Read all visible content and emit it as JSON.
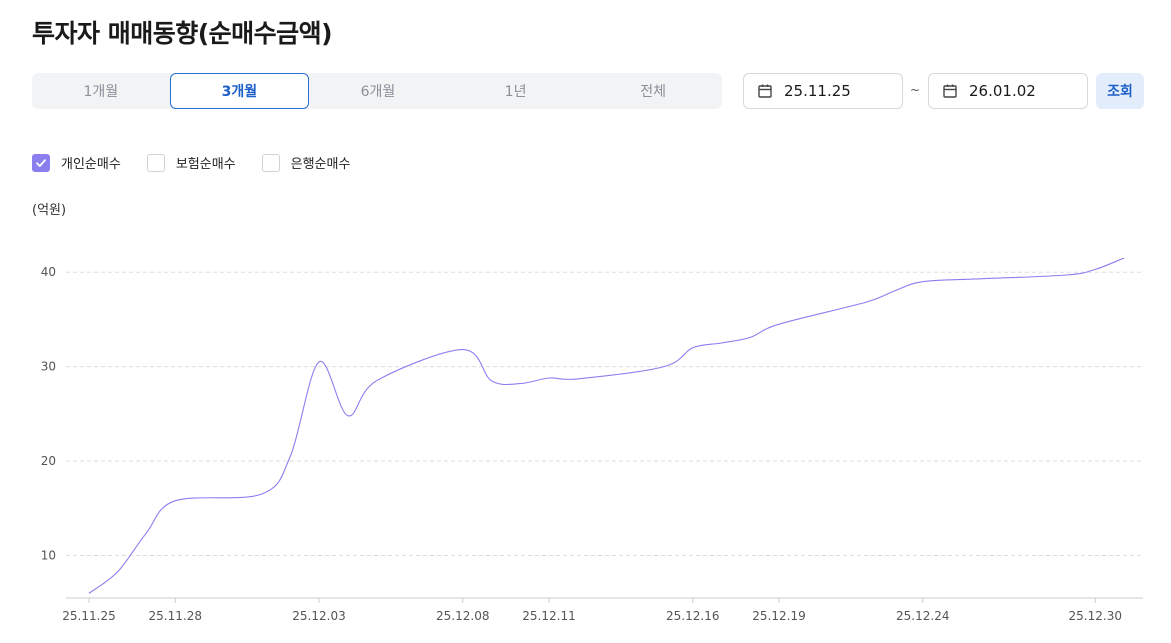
{
  "page": {
    "title": "투자자 매매동향(순매수금액)"
  },
  "period_tabs": [
    {
      "label": "1개월",
      "active": false
    },
    {
      "label": "3개월",
      "active": true
    },
    {
      "label": "6개월",
      "active": false
    },
    {
      "label": "1년",
      "active": false
    },
    {
      "label": "전체",
      "active": false
    }
  ],
  "date_range": {
    "start": "25.11.25",
    "separator": "~",
    "end": "26.01.02",
    "search_label": "조회"
  },
  "legend": [
    {
      "label": "개인순매수",
      "checked": true
    },
    {
      "label": "보험순매수",
      "checked": false
    },
    {
      "label": "은행순매수",
      "checked": false
    }
  ],
  "colors": {
    "accent": "#1e5fc8",
    "series": "#8b7ff0",
    "grid": "#dddddd"
  },
  "chart_data": {
    "type": "line",
    "ylabel": "(억원)",
    "ylim": [
      5.5,
      45
    ],
    "yticks": [
      10,
      20,
      30,
      40
    ],
    "xtick_labels": [
      "25.11.25",
      "25.11.28",
      "25.12.03",
      "25.12.08",
      "25.12.11",
      "25.12.16",
      "25.12.19",
      "25.12.24",
      "25.12.30"
    ],
    "grid": true,
    "series": [
      {
        "name": "개인순매수",
        "x": [
          "25.11.25",
          "25.11.26",
          "25.11.27",
          "25.11.28",
          "25.12.01",
          "25.12.02",
          "25.12.03",
          "25.12.04",
          "25.12.05",
          "25.12.08",
          "25.12.09",
          "25.12.10",
          "25.12.11",
          "25.12.12",
          "25.12.15",
          "25.12.16",
          "25.12.17",
          "25.12.18",
          "25.12.19",
          "25.12.22",
          "25.12.23",
          "25.12.24",
          "25.12.26",
          "25.12.29",
          "25.12.30",
          "25.12.31"
        ],
        "values": [
          6.0,
          8.3,
          12.4,
          15.8,
          16.5,
          20.5,
          30.5,
          24.8,
          28.5,
          31.8,
          28.5,
          28.2,
          28.8,
          28.7,
          30.0,
          32.0,
          32.5,
          33.1,
          34.5,
          36.8,
          38.0,
          39.0,
          39.3,
          39.7,
          40.3,
          41.5
        ]
      }
    ]
  }
}
